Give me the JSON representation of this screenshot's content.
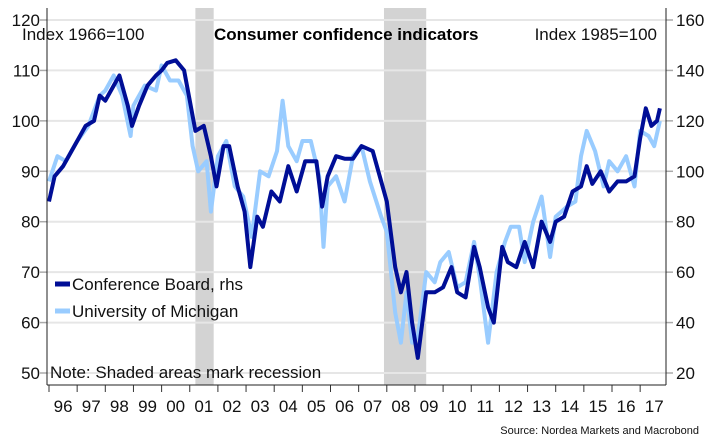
{
  "chart_data": {
    "type": "line",
    "title": "Consumer confidence indicators",
    "left_axis_label": "Index 1966=100",
    "right_axis_label": "Index 1985=100",
    "note": "Note: Shaded areas mark recession",
    "source": "Source: Nordea Markets and Macrobond",
    "ylim_left": [
      50,
      120
    ],
    "ylim_right": [
      20,
      160
    ],
    "yticks_left": [
      "120",
      "110",
      "100",
      "90",
      "80",
      "70",
      "60",
      "50"
    ],
    "yticks_right": [
      "160",
      "140",
      "120",
      "100",
      "80",
      "60",
      "40",
      "20"
    ],
    "xlim": [
      1996,
      2018
    ],
    "xtick_labels": [
      "96",
      "97",
      "98",
      "99",
      "00",
      "01",
      "02",
      "03",
      "04",
      "05",
      "06",
      "07",
      "08",
      "09",
      "10",
      "11",
      "12",
      "13",
      "14",
      "15",
      "16",
      "17"
    ],
    "grid": true,
    "legend_placement": "left-middle",
    "recessions": [
      [
        2001.2,
        2001.85
      ],
      [
        2007.9,
        2009.4
      ]
    ],
    "series": [
      {
        "name": "University of Michigan",
        "axis": "left",
        "color": "#99ccff",
        "points": [
          [
            1996.0,
            88
          ],
          [
            1996.3,
            93
          ],
          [
            1996.6,
            92
          ],
          [
            1997.0,
            96
          ],
          [
            1997.4,
            99
          ],
          [
            1997.8,
            105
          ],
          [
            1998.0,
            106
          ],
          [
            1998.3,
            109
          ],
          [
            1998.6,
            105
          ],
          [
            1998.9,
            97
          ],
          [
            1999.0,
            103
          ],
          [
            1999.4,
            107
          ],
          [
            1999.8,
            106
          ],
          [
            2000.0,
            111
          ],
          [
            2000.3,
            108
          ],
          [
            2000.6,
            108
          ],
          [
            2000.9,
            105
          ],
          [
            2001.1,
            95
          ],
          [
            2001.3,
            90
          ],
          [
            2001.6,
            92
          ],
          [
            2001.75,
            82
          ],
          [
            2002.0,
            93
          ],
          [
            2002.3,
            96
          ],
          [
            2002.6,
            87
          ],
          [
            2002.9,
            85
          ],
          [
            2003.2,
            77
          ],
          [
            2003.5,
            90
          ],
          [
            2003.8,
            89
          ],
          [
            2004.1,
            94
          ],
          [
            2004.3,
            104
          ],
          [
            2004.5,
            95
          ],
          [
            2004.8,
            92
          ],
          [
            2005.0,
            96
          ],
          [
            2005.3,
            96
          ],
          [
            2005.6,
            89
          ],
          [
            2005.75,
            75
          ],
          [
            2005.9,
            87
          ],
          [
            2006.2,
            89
          ],
          [
            2006.5,
            84
          ],
          [
            2006.8,
            93
          ],
          [
            2007.1,
            95
          ],
          [
            2007.4,
            88
          ],
          [
            2007.8,
            81
          ],
          [
            2008.0,
            78
          ],
          [
            2008.3,
            62
          ],
          [
            2008.5,
            56
          ],
          [
            2008.7,
            66
          ],
          [
            2008.9,
            56
          ],
          [
            2009.1,
            57
          ],
          [
            2009.4,
            70
          ],
          [
            2009.7,
            68
          ],
          [
            2009.9,
            72
          ],
          [
            2010.2,
            74
          ],
          [
            2010.5,
            67
          ],
          [
            2010.8,
            68
          ],
          [
            2011.1,
            76
          ],
          [
            2011.3,
            69
          ],
          [
            2011.6,
            56
          ],
          [
            2011.9,
            70
          ],
          [
            2012.2,
            76
          ],
          [
            2012.4,
            79
          ],
          [
            2012.7,
            79
          ],
          [
            2012.9,
            72
          ],
          [
            2013.2,
            80
          ],
          [
            2013.5,
            85
          ],
          [
            2013.8,
            73
          ],
          [
            2014.0,
            81
          ],
          [
            2014.4,
            83
          ],
          [
            2014.7,
            84
          ],
          [
            2014.9,
            93
          ],
          [
            2015.1,
            98
          ],
          [
            2015.4,
            94
          ],
          [
            2015.7,
            87
          ],
          [
            2015.9,
            92
          ],
          [
            2016.2,
            90
          ],
          [
            2016.5,
            93
          ],
          [
            2016.8,
            87
          ],
          [
            2017.0,
            98
          ],
          [
            2017.3,
            97
          ],
          [
            2017.5,
            95
          ],
          [
            2017.7,
            100
          ]
        ]
      },
      {
        "name": "Conference Board, rhs",
        "axis": "right",
        "color": "#000e96",
        "points": [
          [
            1996.0,
            88
          ],
          [
            1996.2,
            98
          ],
          [
            1996.5,
            102
          ],
          [
            1996.8,
            108
          ],
          [
            1997.0,
            112
          ],
          [
            1997.3,
            118
          ],
          [
            1997.6,
            120
          ],
          [
            1997.8,
            130
          ],
          [
            1998.0,
            128
          ],
          [
            1998.3,
            134
          ],
          [
            1998.5,
            138
          ],
          [
            1998.8,
            126
          ],
          [
            1998.95,
            118
          ],
          [
            1999.2,
            126
          ],
          [
            1999.5,
            134
          ],
          [
            1999.8,
            138
          ],
          [
            2000.0,
            140
          ],
          [
            2000.2,
            143
          ],
          [
            2000.5,
            144
          ],
          [
            2000.8,
            140
          ],
          [
            2001.0,
            128
          ],
          [
            2001.2,
            116
          ],
          [
            2001.5,
            118
          ],
          [
            2001.75,
            106
          ],
          [
            2001.95,
            94
          ],
          [
            2002.2,
            110
          ],
          [
            2002.4,
            110
          ],
          [
            2002.7,
            94
          ],
          [
            2002.95,
            84
          ],
          [
            2003.15,
            62
          ],
          [
            2003.4,
            82
          ],
          [
            2003.6,
            78
          ],
          [
            2003.9,
            92
          ],
          [
            2004.2,
            88
          ],
          [
            2004.5,
            102
          ],
          [
            2004.8,
            92
          ],
          [
            2005.1,
            104
          ],
          [
            2005.5,
            104
          ],
          [
            2005.7,
            86
          ],
          [
            2005.9,
            98
          ],
          [
            2006.2,
            106
          ],
          [
            2006.5,
            105
          ],
          [
            2006.8,
            105
          ],
          [
            2007.1,
            110
          ],
          [
            2007.5,
            108
          ],
          [
            2007.8,
            96
          ],
          [
            2008.0,
            88
          ],
          [
            2008.3,
            62
          ],
          [
            2008.5,
            52
          ],
          [
            2008.7,
            60
          ],
          [
            2008.9,
            40
          ],
          [
            2009.1,
            26
          ],
          [
            2009.4,
            52
          ],
          [
            2009.7,
            52
          ],
          [
            2010.0,
            54
          ],
          [
            2010.3,
            62
          ],
          [
            2010.5,
            52
          ],
          [
            2010.8,
            50
          ],
          [
            2011.1,
            70
          ],
          [
            2011.3,
            62
          ],
          [
            2011.6,
            46
          ],
          [
            2011.8,
            40
          ],
          [
            2012.1,
            70
          ],
          [
            2012.3,
            64
          ],
          [
            2012.6,
            62
          ],
          [
            2012.9,
            72
          ],
          [
            2013.2,
            62
          ],
          [
            2013.5,
            80
          ],
          [
            2013.8,
            72
          ],
          [
            2014.0,
            80
          ],
          [
            2014.3,
            82
          ],
          [
            2014.6,
            92
          ],
          [
            2014.9,
            94
          ],
          [
            2015.1,
            102
          ],
          [
            2015.3,
            95
          ],
          [
            2015.6,
            100
          ],
          [
            2015.9,
            92
          ],
          [
            2016.2,
            96
          ],
          [
            2016.5,
            96
          ],
          [
            2016.8,
            98
          ],
          [
            2017.0,
            113
          ],
          [
            2017.2,
            125
          ],
          [
            2017.4,
            118
          ],
          [
            2017.6,
            120
          ],
          [
            2017.7,
            125
          ]
        ]
      }
    ]
  }
}
